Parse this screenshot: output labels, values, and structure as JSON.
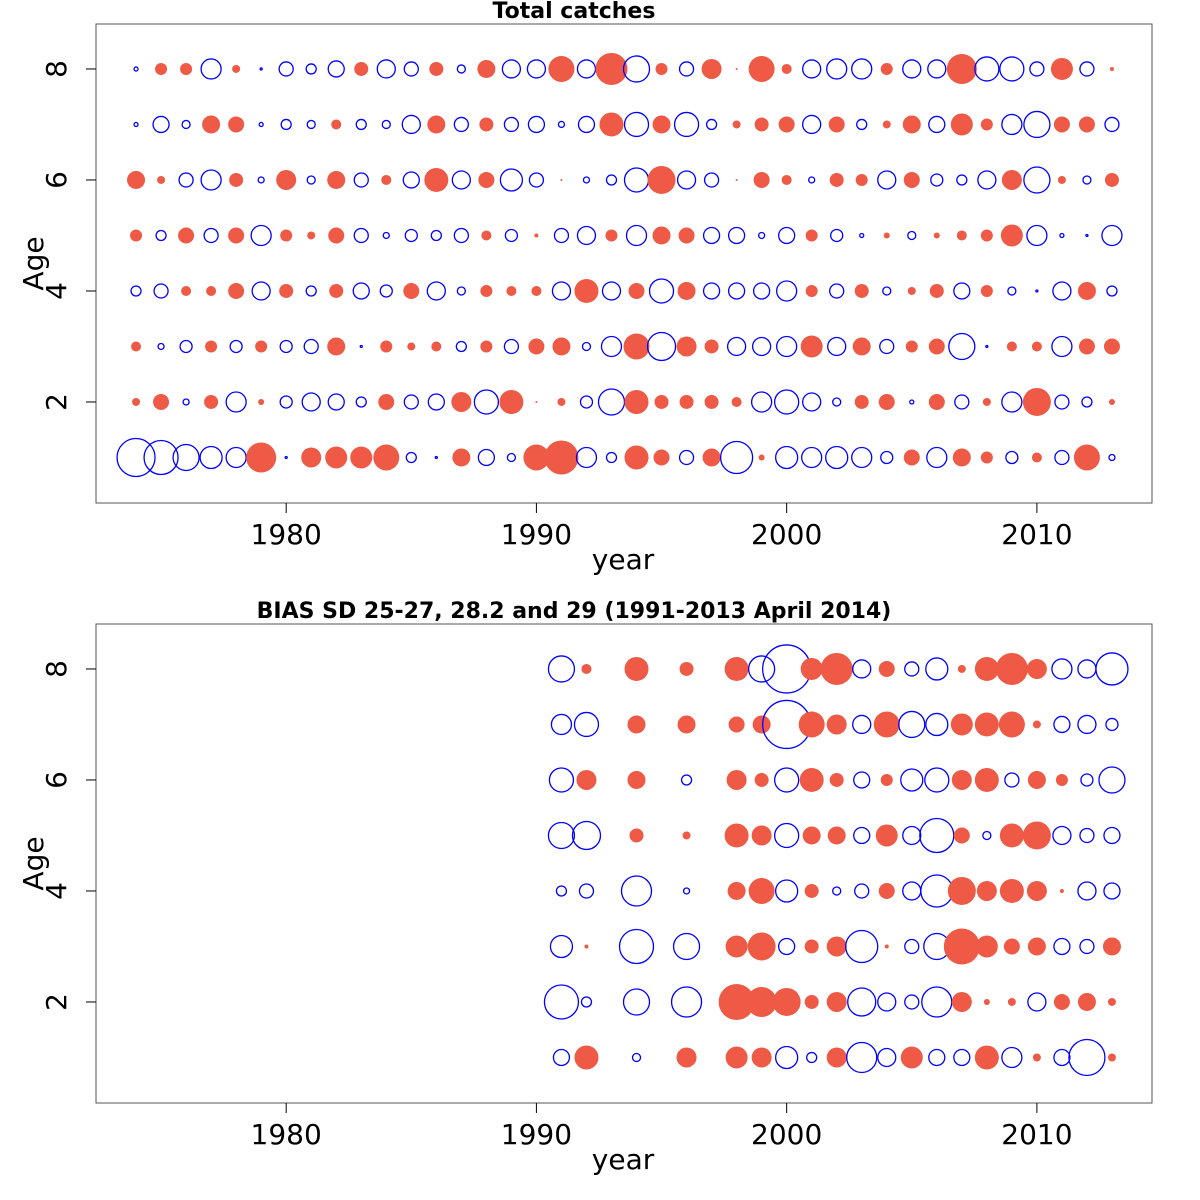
{
  "chart_data": [
    {
      "type": "bubble",
      "title": "Total catches",
      "xlabel": "year",
      "ylabel": "Age",
      "xlim": [
        1972.4,
        2014.6
      ],
      "ylim": [
        0.18,
        8.81
      ],
      "xticks": [
        1980,
        1990,
        2000,
        2010
      ],
      "yticks": [
        2,
        4,
        6,
        8
      ],
      "positive_color": "#ee5a45",
      "negative_color": "#0000ff",
      "x": [
        1974,
        1975,
        1976,
        1977,
        1978,
        1979,
        1980,
        1981,
        1982,
        1983,
        1984,
        1985,
        1986,
        1987,
        1988,
        1989,
        1990,
        1991,
        1992,
        1993,
        1994,
        1995,
        1996,
        1997,
        1998,
        1999,
        2000,
        2001,
        2002,
        2003,
        2004,
        2005,
        2006,
        2007,
        2008,
        2009,
        2010,
        2011,
        2012,
        2013
      ],
      "y": [
        1,
        2,
        3,
        4,
        5,
        6,
        7,
        8
      ],
      "values": [
        [
          -1.9,
          -1.7,
          -1.3,
          -1.1,
          -1.0,
          1.5,
          -0.1,
          1.0,
          1.1,
          1.1,
          1.3,
          -0.5,
          -0.1,
          0.9,
          -0.8,
          -0.4,
          1.3,
          1.7,
          -1.0,
          -0.5,
          1.2,
          0.8,
          -0.7,
          0.9,
          -1.6,
          0.3,
          -1.1,
          -1.0,
          -1.1,
          -1.0,
          -0.6,
          0.8,
          -1.0,
          0.9,
          0.6,
          -0.6,
          0.5,
          -0.7,
          1.3,
          -0.3
        ],
        [
          0.4,
          0.8,
          -0.3,
          0.7,
          -1.0,
          0.3,
          -0.6,
          -0.9,
          -0.8,
          -0.5,
          0.8,
          -0.7,
          -0.8,
          1.0,
          -1.2,
          1.2,
          0.1,
          0.4,
          -0.6,
          -1.3,
          1.2,
          0.7,
          0.7,
          0.7,
          0.5,
          -1.0,
          -1.2,
          -0.9,
          -0.4,
          0.7,
          0.8,
          -0.2,
          0.8,
          -0.7,
          0.4,
          -1.0,
          1.4,
          -0.7,
          -0.5,
          0.3
        ],
        [
          0.5,
          -0.3,
          -0.6,
          0.6,
          -0.6,
          0.6,
          -0.6,
          -0.7,
          0.9,
          -0.1,
          0.6,
          0.4,
          0.5,
          -0.5,
          0.6,
          -0.7,
          0.8,
          0.9,
          -0.4,
          -1.0,
          1.3,
          -1.4,
          1.0,
          0.7,
          -0.9,
          -0.9,
          -1.0,
          1.1,
          -0.9,
          0.9,
          -0.7,
          0.6,
          0.8,
          -1.3,
          -0.1,
          0.5,
          0.5,
          -1.0,
          0.8,
          0.8
        ],
        [
          -0.5,
          -0.7,
          0.5,
          0.5,
          0.8,
          -0.9,
          0.7,
          -0.5,
          0.7,
          -0.8,
          -0.6,
          0.8,
          -0.9,
          -0.4,
          0.6,
          0.5,
          0.5,
          -0.9,
          1.2,
          -0.9,
          0.8,
          -1.2,
          0.9,
          -0.8,
          -0.8,
          -0.8,
          -1.0,
          0.6,
          -0.7,
          0.7,
          -0.4,
          0.4,
          0.7,
          -0.8,
          0.6,
          -0.4,
          -0.1,
          -0.9,
          0.9,
          -0.5
        ],
        [
          0.6,
          -0.5,
          0.8,
          -0.7,
          0.8,
          -1.0,
          0.6,
          0.4,
          0.8,
          -0.7,
          -0.3,
          -0.6,
          -0.5,
          -0.7,
          0.5,
          -0.6,
          0.2,
          -0.7,
          -0.9,
          0.6,
          -1.0,
          0.9,
          0.8,
          -0.8,
          -0.8,
          -0.3,
          -0.8,
          0.6,
          -0.6,
          -0.2,
          0.3,
          -0.4,
          0.3,
          0.5,
          0.6,
          1.1,
          -1.0,
          -0.2,
          -0.1,
          -1.0
        ],
        [
          0.9,
          0.4,
          -0.7,
          -1.0,
          0.7,
          -0.3,
          1.0,
          -0.4,
          0.9,
          -0.7,
          0.5,
          -0.8,
          1.2,
          -0.9,
          0.8,
          -1.1,
          -0.7,
          0.1,
          -0.3,
          -0.5,
          -1.2,
          1.4,
          -0.9,
          -0.7,
          0.1,
          0.8,
          0.5,
          -0.3,
          0.7,
          0.6,
          -0.9,
          0.8,
          -0.6,
          -0.5,
          -0.9,
          1.0,
          -1.3,
          0.4,
          -0.4,
          0.7
        ],
        [
          -0.2,
          -0.8,
          -0.4,
          0.9,
          0.8,
          -0.2,
          -0.5,
          -0.4,
          0.5,
          -0.5,
          -0.4,
          -0.9,
          0.9,
          -0.7,
          0.7,
          -0.7,
          -0.8,
          -0.3,
          -0.8,
          1.2,
          -1.2,
          0.9,
          -1.2,
          -0.5,
          0.4,
          0.7,
          0.8,
          -0.9,
          0.8,
          -0.5,
          0.4,
          0.9,
          -0.8,
          1.1,
          0.6,
          -1.0,
          -1.3,
          0.8,
          0.8,
          -0.7
        ],
        [
          -0.2,
          0.6,
          0.6,
          -1.0,
          0.4,
          -0.1,
          -0.7,
          -0.5,
          -0.8,
          0.7,
          -0.9,
          -0.7,
          0.7,
          -0.4,
          0.9,
          -0.9,
          -0.9,
          1.3,
          -0.9,
          1.6,
          -1.3,
          0.6,
          -0.7,
          1.0,
          0.1,
          1.3,
          0.5,
          -0.9,
          -1.0,
          -1.0,
          0.6,
          -0.9,
          -0.9,
          1.5,
          -1.2,
          -1.2,
          -0.7,
          1.1,
          -0.7,
          0.2
        ]
      ]
    },
    {
      "type": "bubble",
      "title": "BIAS SD 25-27, 28.2 and 29 (1991-2013 April 2014)",
      "xlabel": "year",
      "ylabel": "Age",
      "xlim": [
        1972.4,
        2014.6
      ],
      "ylim": [
        0.18,
        8.81
      ],
      "xticks": [
        1980,
        1990,
        2000,
        2010
      ],
      "yticks": [
        2,
        4,
        6,
        8
      ],
      "positive_color": "#ee5a45",
      "negative_color": "#0000ff",
      "x": [
        1991,
        1992,
        1993,
        1994,
        1995,
        1996,
        1997,
        1998,
        1999,
        2000,
        2001,
        2002,
        2003,
        2004,
        2005,
        2006,
        2007,
        2008,
        2009,
        2010,
        2011,
        2012,
        2013
      ],
      "y": [
        1,
        2,
        3,
        4,
        5,
        6,
        7,
        8
      ],
      "values": [
        [
          -0.8,
          1.2,
          null,
          -0.4,
          null,
          1.0,
          null,
          1.1,
          1.0,
          -1.1,
          -0.5,
          1.0,
          -1.5,
          -0.9,
          1.1,
          -0.8,
          -0.8,
          1.2,
          -1.0,
          0.4,
          -0.8,
          -1.8,
          0.4
        ],
        [
          -1.7,
          -0.5,
          null,
          -1.3,
          null,
          -1.5,
          null,
          1.8,
          1.5,
          1.4,
          0.7,
          1.0,
          -1.4,
          -0.9,
          -0.7,
          -1.5,
          1.0,
          0.3,
          0.4,
          -0.9,
          0.8,
          0.9,
          0.4
        ],
        [
          -1.1,
          0.2,
          null,
          -1.7,
          null,
          -1.3,
          null,
          1.1,
          1.4,
          -0.8,
          0.7,
          1.0,
          -1.6,
          0.2,
          -0.7,
          -1.3,
          1.8,
          1.1,
          0.8,
          0.9,
          -0.8,
          -0.7,
          0.9
        ],
        [
          -0.5,
          -0.7,
          null,
          -1.5,
          null,
          -0.3,
          null,
          0.9,
          1.3,
          -1.1,
          0.7,
          -0.4,
          -0.7,
          0.8,
          -0.9,
          -1.6,
          1.4,
          1.0,
          1.2,
          1.0,
          0.2,
          -0.9,
          -0.8
        ],
        [
          -1.3,
          -1.4,
          null,
          0.7,
          null,
          0.4,
          null,
          1.2,
          1.0,
          -1.2,
          0.9,
          0.9,
          -0.8,
          1.1,
          -0.9,
          -1.7,
          0.8,
          -0.4,
          1.2,
          1.4,
          -0.9,
          -0.7,
          -0.8
        ],
        [
          -1.2,
          1.0,
          null,
          0.9,
          null,
          -0.5,
          null,
          1.0,
          0.7,
          -1.2,
          1.2,
          0.7,
          -0.8,
          0.6,
          -1.1,
          -1.2,
          1.0,
          1.2,
          -0.7,
          0.9,
          0.6,
          -0.6,
          -1.3
        ],
        [
          -1.0,
          -1.2,
          null,
          0.9,
          null,
          0.9,
          null,
          0.8,
          0.9,
          -2.4,
          1.3,
          1.0,
          -0.9,
          1.3,
          -1.3,
          -1.1,
          1.1,
          1.2,
          1.3,
          0.4,
          -0.8,
          -0.9,
          -0.6
        ],
        [
          -1.3,
          0.5,
          null,
          1.2,
          null,
          0.7,
          null,
          1.2,
          -1.3,
          -2.4,
          1.1,
          1.6,
          -0.9,
          0.8,
          -0.7,
          -1.1,
          0.4,
          1.2,
          1.6,
          1.0,
          -1.0,
          -0.9,
          -1.6
        ]
      ]
    }
  ]
}
